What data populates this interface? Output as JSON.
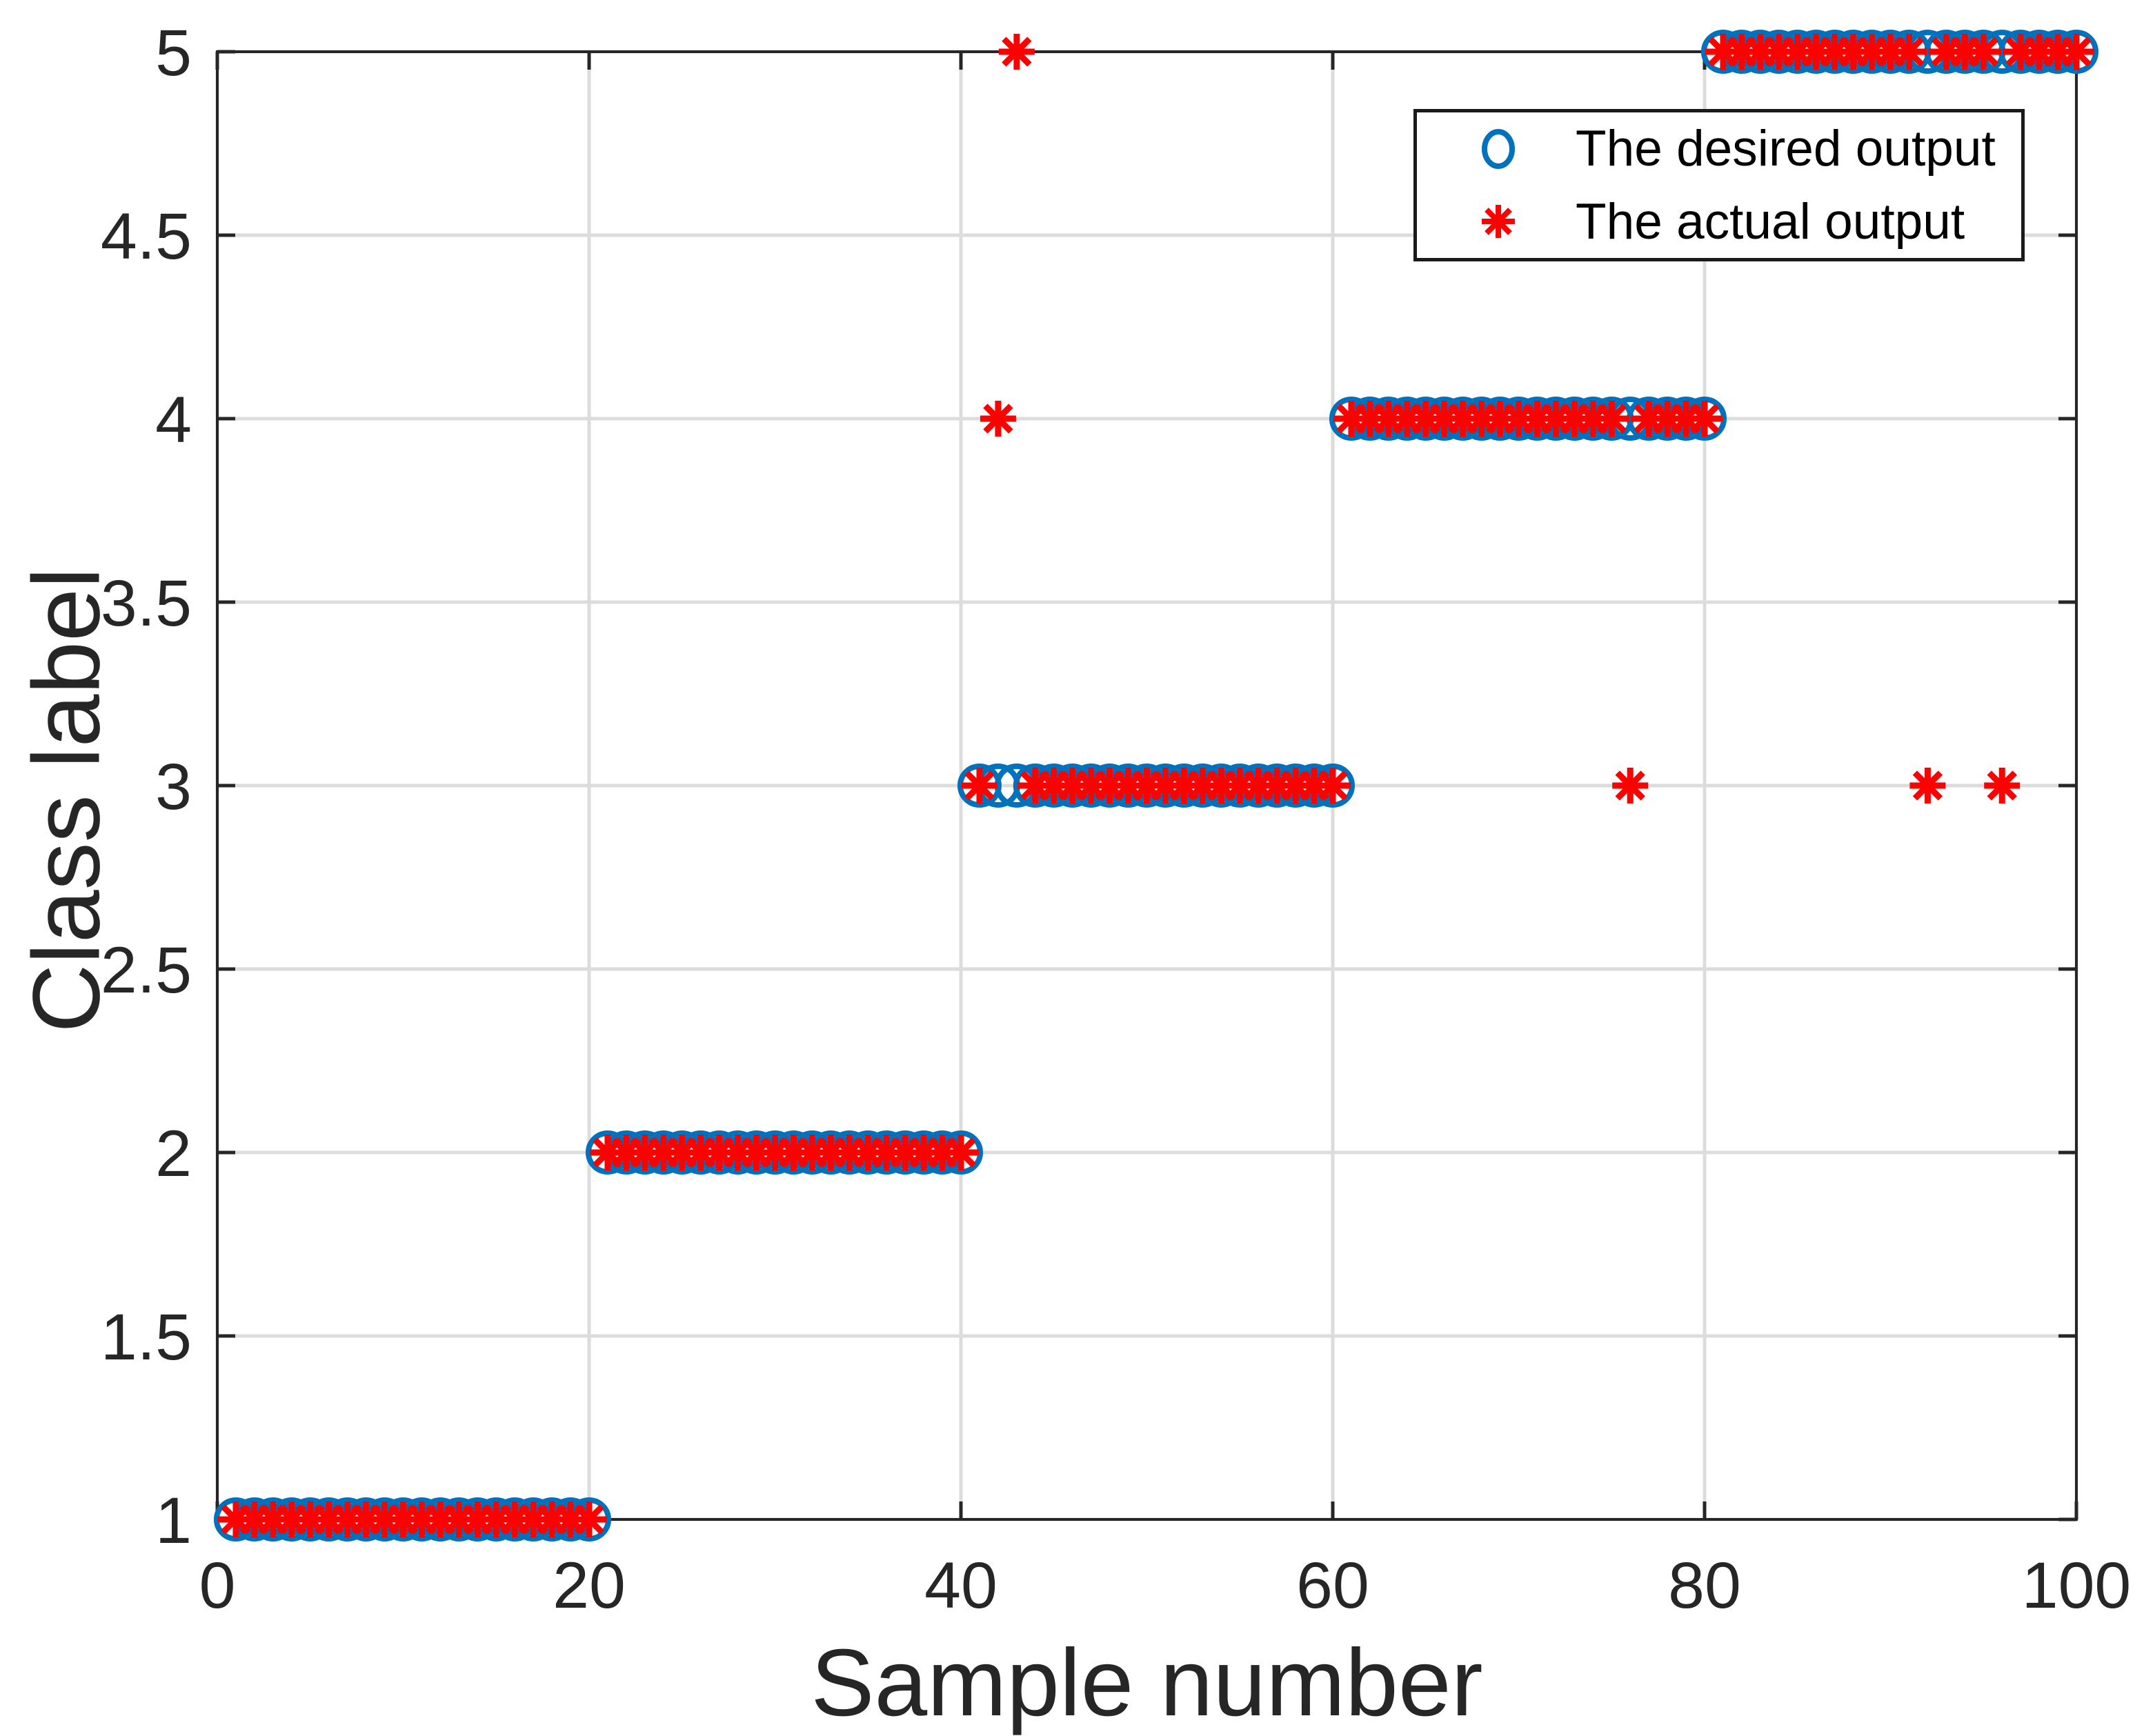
{
  "style": {
    "background": "#FFFFFF",
    "axis_color": "#262626",
    "grid_color": "#DCDCDC",
    "tick_label_color": "#262626",
    "legend_border_color": "#1A1A1A",
    "legend_text_color": "#000000",
    "desired_color": "#0072BD",
    "actual_color": "#FF0000"
  },
  "chart_data": {
    "type": "scatter",
    "title": "",
    "xlabel": "Sample number",
    "ylabel": "Class label",
    "xlim": [
      0,
      100
    ],
    "ylim": [
      1,
      5
    ],
    "x_ticks": [
      0,
      20,
      40,
      60,
      80,
      100
    ],
    "y_ticks": [
      1,
      1.5,
      2,
      2.5,
      3,
      3.5,
      4,
      4.5,
      5
    ],
    "grid": true,
    "legend_position": "top-right",
    "x": [
      1,
      2,
      3,
      4,
      5,
      6,
      7,
      8,
      9,
      10,
      11,
      12,
      13,
      14,
      15,
      16,
      17,
      18,
      19,
      20,
      21,
      22,
      23,
      24,
      25,
      26,
      27,
      28,
      29,
      30,
      31,
      32,
      33,
      34,
      35,
      36,
      37,
      38,
      39,
      40,
      41,
      42,
      43,
      44,
      45,
      46,
      47,
      48,
      49,
      50,
      51,
      52,
      53,
      54,
      55,
      56,
      57,
      58,
      59,
      60,
      61,
      62,
      63,
      64,
      65,
      66,
      67,
      68,
      69,
      70,
      71,
      72,
      73,
      74,
      75,
      76,
      77,
      78,
      79,
      80,
      81,
      82,
      83,
      84,
      85,
      86,
      87,
      88,
      89,
      90,
      91,
      92,
      93,
      94,
      95,
      96,
      97,
      98,
      99,
      100
    ],
    "series": [
      {
        "name": "The desired output",
        "marker": "circle",
        "color": "#0072BD",
        "y": [
          1,
          1,
          1,
          1,
          1,
          1,
          1,
          1,
          1,
          1,
          1,
          1,
          1,
          1,
          1,
          1,
          1,
          1,
          1,
          1,
          2,
          2,
          2,
          2,
          2,
          2,
          2,
          2,
          2,
          2,
          2,
          2,
          2,
          2,
          2,
          2,
          2,
          2,
          2,
          2,
          3,
          3,
          3,
          3,
          3,
          3,
          3,
          3,
          3,
          3,
          3,
          3,
          3,
          3,
          3,
          3,
          3,
          3,
          3,
          3,
          4,
          4,
          4,
          4,
          4,
          4,
          4,
          4,
          4,
          4,
          4,
          4,
          4,
          4,
          4,
          4,
          4,
          4,
          4,
          4,
          5,
          5,
          5,
          5,
          5,
          5,
          5,
          5,
          5,
          5,
          5,
          5,
          5,
          5,
          5,
          5,
          5,
          5,
          5,
          5
        ]
      },
      {
        "name": "The actual output",
        "marker": "asterisk",
        "color": "#FF0000",
        "y": [
          1,
          1,
          1,
          1,
          1,
          1,
          1,
          1,
          1,
          1,
          1,
          1,
          1,
          1,
          1,
          1,
          1,
          1,
          1,
          1,
          2,
          2,
          2,
          2,
          2,
          2,
          2,
          2,
          2,
          2,
          2,
          2,
          2,
          2,
          2,
          2,
          2,
          2,
          2,
          2,
          3,
          4,
          5,
          3,
          3,
          3,
          3,
          3,
          3,
          3,
          3,
          3,
          3,
          3,
          3,
          3,
          3,
          3,
          3,
          3,
          4,
          4,
          4,
          4,
          4,
          4,
          4,
          4,
          4,
          4,
          4,
          4,
          4,
          4,
          4,
          3,
          4,
          4,
          4,
          4,
          5,
          5,
          5,
          5,
          5,
          5,
          5,
          5,
          5,
          5,
          5,
          3,
          5,
          5,
          5,
          3,
          5,
          5,
          5,
          5
        ]
      }
    ]
  }
}
